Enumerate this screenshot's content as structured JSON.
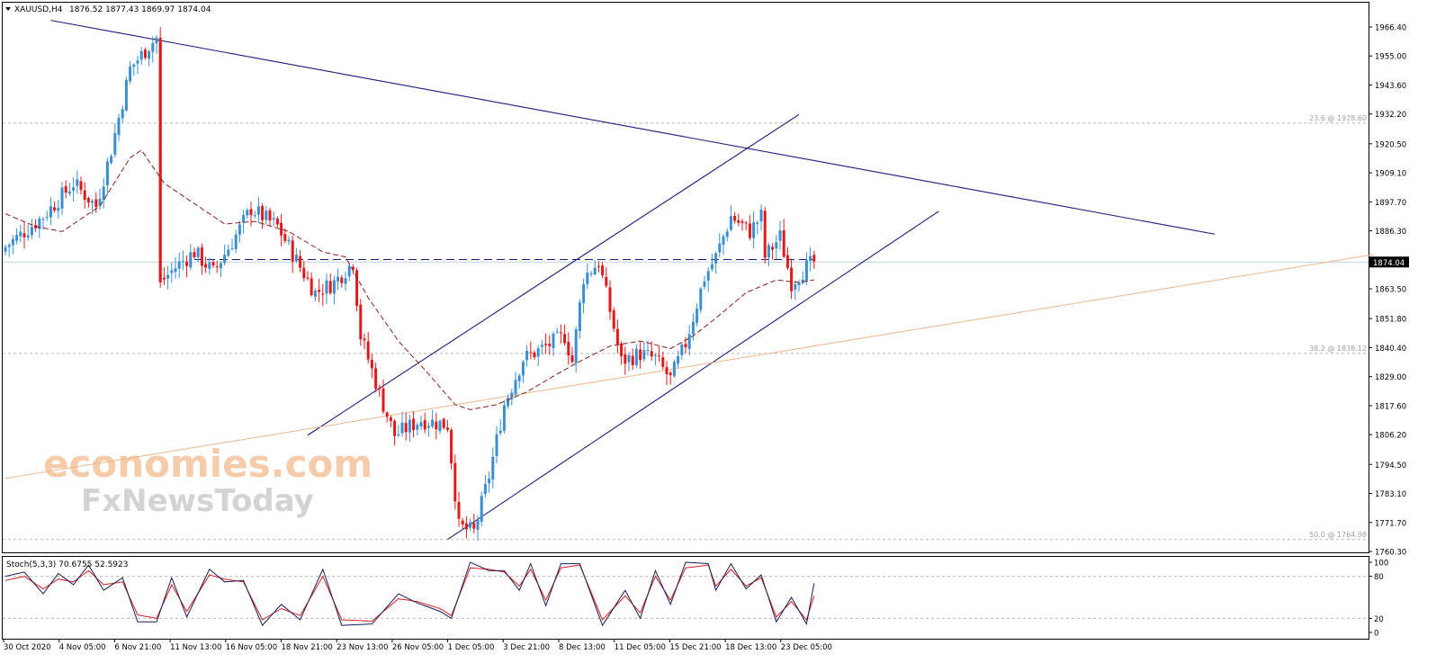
{
  "header": {
    "symbol_label": "XAUUSD,H4",
    "ohlc": "1876.52 1877.43 1869.97 1874.04"
  },
  "watermark": {
    "line1": "economies.com",
    "line2": "FxNewsToday"
  },
  "colors": {
    "bull": "#3b8fd0",
    "bear": "#e0191a",
    "trendline": "#1a1a7a",
    "ma": "#8b1d1d",
    "fib_line": "#f0b48a",
    "grid_dashed": "#b5b5b5",
    "current_price_bg": "#000000",
    "stoch_main": "#1a1a5a",
    "stoch_signal": "#d42020"
  },
  "chart_data": [
    {
      "type": "candlestick",
      "instrument": "XAUUSD",
      "timeframe": "H4",
      "ylim": [
        1760.3,
        1966.4
      ],
      "y_ticks": [
        "1966.40",
        "1955.00",
        "1943.60",
        "1932.20",
        "1920.50",
        "1909.10",
        "1897.70",
        "1886.30",
        "1874.04",
        "1863.50",
        "1851.80",
        "1840.40",
        "1829.00",
        "1817.60",
        "1806.20",
        "1794.50",
        "1783.10",
        "1771.70",
        "1760.30"
      ],
      "x_ticks": [
        "30 Oct 2020",
        "4 Nov 05:00",
        "6 Nov 21:00",
        "11 Nov 13:00",
        "16 Nov 05:00",
        "18 Nov 21:00",
        "23 Nov 13:00",
        "26 Nov 05:00",
        "1 Dec 05:00",
        "3 Dec 21:00",
        "8 Dec 13:00",
        "11 Dec 05:00",
        "15 Dec 21:00",
        "18 Dec 13:00",
        "23 Dec 05:00"
      ],
      "current_price": "1874.04",
      "fib_levels": [
        {
          "label": "23.6 @ 1928.60",
          "value": 1928.6
        },
        {
          "label": "38.2 @ 1838.12",
          "value": 1838.12
        },
        {
          "label": "50.0 @ 1764.98",
          "value": 1764.98
        }
      ],
      "resistance_level": 1875.0,
      "close_anchors": [
        [
          0,
          1880
        ],
        [
          10,
          1892
        ],
        [
          18,
          1905
        ],
        [
          24,
          1896
        ],
        [
          28,
          1918
        ],
        [
          33,
          1950
        ],
        [
          38,
          1959
        ],
        [
          40,
          1962
        ],
        [
          41,
          1866
        ],
        [
          45,
          1872
        ],
        [
          50,
          1878
        ],
        [
          55,
          1870
        ],
        [
          60,
          1882
        ],
        [
          65,
          1895
        ],
        [
          72,
          1888
        ],
        [
          78,
          1872
        ],
        [
          82,
          1862
        ],
        [
          87,
          1866
        ],
        [
          92,
          1874
        ],
        [
          94,
          1845
        ],
        [
          100,
          1818
        ],
        [
          103,
          1806
        ],
        [
          110,
          1812
        ],
        [
          117,
          1810
        ],
        [
          120,
          1770
        ],
        [
          124,
          1768
        ],
        [
          128,
          1790
        ],
        [
          132,
          1818
        ],
        [
          137,
          1836
        ],
        [
          142,
          1840
        ],
        [
          148,
          1845
        ],
        [
          150,
          1835
        ],
        [
          153,
          1868
        ],
        [
          157,
          1874
        ],
        [
          160,
          1855
        ],
        [
          163,
          1835
        ],
        [
          168,
          1838
        ],
        [
          172,
          1836
        ],
        [
          176,
          1828
        ],
        [
          180,
          1842
        ],
        [
          185,
          1868
        ],
        [
          188,
          1876
        ],
        [
          192,
          1892
        ],
        [
          197,
          1886
        ],
        [
          200,
          1892
        ],
        [
          201,
          1876
        ],
        [
          205,
          1884
        ],
        [
          208,
          1866
        ],
        [
          212,
          1872
        ],
        [
          214,
          1874
        ]
      ],
      "moving_average": {
        "type": "SMA",
        "anchors": [
          [
            0,
            1893
          ],
          [
            8,
            1888
          ],
          [
            15,
            1886
          ],
          [
            25,
            1896
          ],
          [
            33,
            1915
          ],
          [
            36,
            1918
          ],
          [
            42,
            1905
          ],
          [
            50,
            1897
          ],
          [
            58,
            1889
          ],
          [
            66,
            1890
          ],
          [
            75,
            1886
          ],
          [
            84,
            1878
          ],
          [
            90,
            1876
          ],
          [
            96,
            1860
          ],
          [
            104,
            1843
          ],
          [
            112,
            1830
          ],
          [
            119,
            1818
          ],
          [
            123,
            1816
          ],
          [
            130,
            1818
          ],
          [
            138,
            1823
          ],
          [
            146,
            1830
          ],
          [
            152,
            1835
          ],
          [
            160,
            1841
          ],
          [
            168,
            1843
          ],
          [
            176,
            1840
          ],
          [
            182,
            1845
          ],
          [
            188,
            1852
          ],
          [
            196,
            1862
          ],
          [
            204,
            1867
          ],
          [
            210,
            1866
          ],
          [
            214,
            1867
          ]
        ]
      },
      "trendlines": [
        {
          "name": "upper channel",
          "from": [
            80,
            1806
          ],
          "to": [
            210,
            1932
          ]
        },
        {
          "name": "lower channel",
          "from": [
            117,
            1765
          ],
          "to": [
            247,
            1894
          ]
        },
        {
          "name": "long-term descending",
          "from": [
            12,
            1969
          ],
          "to": [
            320,
            1885
          ]
        },
        {
          "name": "long-term ascending",
          "from": [
            0,
            1789
          ],
          "to": [
            362,
            1877
          ]
        }
      ]
    },
    {
      "type": "line",
      "indicator_label": "Stoch(5,3,3) 70.6755 52.5923",
      "ylim": [
        0,
        100
      ],
      "y_ticks": [
        "100",
        "80",
        "20",
        "0"
      ],
      "levels": [
        80,
        20
      ],
      "main_anchors": [
        [
          0,
          80
        ],
        [
          5,
          86
        ],
        [
          10,
          55
        ],
        [
          14,
          84
        ],
        [
          18,
          68
        ],
        [
          22,
          96
        ],
        [
          26,
          60
        ],
        [
          31,
          78
        ],
        [
          35,
          15
        ],
        [
          40,
          15
        ],
        [
          44,
          78
        ],
        [
          48,
          22
        ],
        [
          54,
          90
        ],
        [
          58,
          72
        ],
        [
          63,
          74
        ],
        [
          68,
          10
        ],
        [
          73,
          40
        ],
        [
          78,
          18
        ],
        [
          84,
          90
        ],
        [
          89,
          10
        ],
        [
          97,
          12
        ],
        [
          104,
          55
        ],
        [
          109,
          42
        ],
        [
          115,
          30
        ],
        [
          118,
          20
        ],
        [
          123,
          100
        ],
        [
          128,
          88
        ],
        [
          132,
          88
        ],
        [
          136,
          60
        ],
        [
          139,
          98
        ],
        [
          143,
          38
        ],
        [
          147,
          98
        ],
        [
          152,
          98
        ],
        [
          158,
          10
        ],
        [
          164,
          60
        ],
        [
          168,
          20
        ],
        [
          172,
          88
        ],
        [
          176,
          40
        ],
        [
          180,
          100
        ],
        [
          186,
          98
        ],
        [
          188,
          60
        ],
        [
          192,
          98
        ],
        [
          196,
          62
        ],
        [
          200,
          82
        ],
        [
          204,
          15
        ],
        [
          208,
          50
        ],
        [
          212,
          12
        ],
        [
          214,
          70
        ]
      ],
      "signal_anchors": [
        [
          0,
          74
        ],
        [
          5,
          80
        ],
        [
          10,
          62
        ],
        [
          14,
          76
        ],
        [
          18,
          72
        ],
        [
          22,
          88
        ],
        [
          26,
          68
        ],
        [
          31,
          72
        ],
        [
          35,
          25
        ],
        [
          40,
          20
        ],
        [
          44,
          68
        ],
        [
          48,
          30
        ],
        [
          54,
          82
        ],
        [
          58,
          76
        ],
        [
          63,
          72
        ],
        [
          68,
          18
        ],
        [
          73,
          34
        ],
        [
          78,
          24
        ],
        [
          84,
          80
        ],
        [
          89,
          18
        ],
        [
          97,
          16
        ],
        [
          104,
          48
        ],
        [
          109,
          44
        ],
        [
          115,
          34
        ],
        [
          118,
          24
        ],
        [
          123,
          92
        ],
        [
          128,
          90
        ],
        [
          132,
          86
        ],
        [
          136,
          66
        ],
        [
          139,
          90
        ],
        [
          143,
          46
        ],
        [
          147,
          92
        ],
        [
          152,
          96
        ],
        [
          158,
          18
        ],
        [
          164,
          52
        ],
        [
          168,
          28
        ],
        [
          172,
          80
        ],
        [
          176,
          46
        ],
        [
          180,
          92
        ],
        [
          186,
          96
        ],
        [
          188,
          66
        ],
        [
          192,
          90
        ],
        [
          196,
          66
        ],
        [
          200,
          78
        ],
        [
          204,
          22
        ],
        [
          208,
          44
        ],
        [
          212,
          18
        ],
        [
          214,
          52
        ]
      ]
    }
  ]
}
